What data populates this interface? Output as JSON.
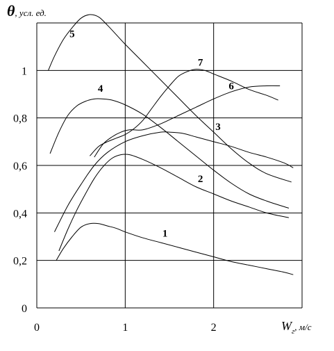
{
  "chart_data": {
    "type": "line",
    "title": "",
    "ylabel_symbol": "θ",
    "ylabel_unit": ", усл. ед.",
    "xlabel_symbol": "W",
    "xlabel_sub": "г",
    "xlabel_unit": ", м/с",
    "xlim": [
      0,
      3.0
    ],
    "ylim": [
      0,
      1.2
    ],
    "x_ticks": [
      0,
      1,
      2
    ],
    "x_tick_labels": [
      "0",
      "1",
      "2"
    ],
    "y_ticks": [
      0,
      0.2,
      0.4,
      0.6,
      0.8,
      1.0
    ],
    "y_tick_labels": [
      "0",
      "0,2",
      "0,4",
      "0,6",
      "0,8",
      "1"
    ],
    "grid": true,
    "series": [
      {
        "name": "1",
        "x": [
          0.22,
          0.3,
          0.4,
          0.5,
          0.6,
          0.7,
          0.8,
          0.9,
          1.0,
          1.2,
          1.4,
          1.6,
          1.8,
          2.0,
          2.2,
          2.4,
          2.6,
          2.8,
          2.9
        ],
        "y": [
          0.2,
          0.25,
          0.3,
          0.34,
          0.355,
          0.355,
          0.345,
          0.335,
          0.32,
          0.295,
          0.275,
          0.255,
          0.235,
          0.215,
          0.195,
          0.18,
          0.165,
          0.15,
          0.14
        ]
      },
      {
        "name": "2",
        "x": [
          0.25,
          0.35,
          0.45,
          0.55,
          0.65,
          0.75,
          0.85,
          0.95,
          1.05,
          1.2,
          1.4,
          1.6,
          1.8,
          2.0,
          2.2,
          2.4,
          2.6,
          2.85
        ],
        "y": [
          0.24,
          0.33,
          0.41,
          0.48,
          0.545,
          0.595,
          0.63,
          0.645,
          0.645,
          0.625,
          0.59,
          0.55,
          0.51,
          0.48,
          0.45,
          0.425,
          0.4,
          0.38
        ]
      },
      {
        "name": "3",
        "x": [
          0.2,
          0.35,
          0.5,
          0.65,
          0.8,
          1.0,
          1.2,
          1.4,
          1.5,
          1.65,
          1.8,
          2.0,
          2.2,
          2.4,
          2.6,
          2.8,
          2.9
        ],
        "y": [
          0.32,
          0.43,
          0.52,
          0.6,
          0.655,
          0.7,
          0.725,
          0.74,
          0.74,
          0.735,
          0.72,
          0.7,
          0.68,
          0.655,
          0.635,
          0.61,
          0.59
        ]
      },
      {
        "name": "4",
        "x": [
          0.15,
          0.25,
          0.35,
          0.45,
          0.55,
          0.65,
          0.75,
          0.85,
          1.0,
          1.2,
          1.4,
          1.6,
          1.8,
          2.0,
          2.2,
          2.4,
          2.6,
          2.85
        ],
        "y": [
          0.65,
          0.74,
          0.81,
          0.85,
          0.87,
          0.88,
          0.88,
          0.875,
          0.855,
          0.815,
          0.76,
          0.7,
          0.64,
          0.58,
          0.525,
          0.48,
          0.45,
          0.42
        ]
      },
      {
        "name": "5",
        "x": [
          0.13,
          0.2,
          0.3,
          0.4,
          0.5,
          0.6,
          0.7,
          0.8,
          0.9,
          1.0,
          1.2,
          1.4,
          1.6,
          1.8,
          2.0,
          2.2,
          2.4,
          2.6,
          2.88
        ],
        "y": [
          1.0,
          1.06,
          1.13,
          1.18,
          1.22,
          1.235,
          1.225,
          1.19,
          1.15,
          1.11,
          1.035,
          0.96,
          0.885,
          0.81,
          0.74,
          0.67,
          0.61,
          0.565,
          0.53
        ]
      },
      {
        "name": "6",
        "x": [
          0.65,
          0.75,
          0.85,
          0.95,
          1.05,
          1.2,
          1.4,
          1.6,
          1.8,
          2.0,
          2.2,
          2.4,
          2.6,
          2.75
        ],
        "y": [
          0.635,
          0.69,
          0.72,
          0.74,
          0.75,
          0.75,
          0.775,
          0.81,
          0.845,
          0.88,
          0.91,
          0.93,
          0.935,
          0.935
        ]
      },
      {
        "name": "7",
        "x": [
          0.6,
          0.7,
          0.8,
          0.9,
          1.0,
          1.1,
          1.2,
          1.3,
          1.4,
          1.5,
          1.6,
          1.7,
          1.8,
          1.9,
          2.0,
          2.2,
          2.4,
          2.6,
          2.73
        ],
        "y": [
          0.64,
          0.68,
          0.7,
          0.715,
          0.73,
          0.755,
          0.79,
          0.84,
          0.89,
          0.935,
          0.975,
          0.995,
          1.005,
          1.0,
          0.985,
          0.955,
          0.92,
          0.895,
          0.875
        ]
      }
    ],
    "labels": [
      {
        "text": "1",
        "x": 1.45,
        "y": 0.3
      },
      {
        "text": "2",
        "x": 1.85,
        "y": 0.53
      },
      {
        "text": "3",
        "x": 2.05,
        "y": 0.75
      },
      {
        "text": "4",
        "x": 0.72,
        "y": 0.91
      },
      {
        "text": "5",
        "x": 0.4,
        "y": 1.14
      },
      {
        "text": "6",
        "x": 2.2,
        "y": 0.92
      },
      {
        "text": "7",
        "x": 1.85,
        "y": 1.02
      }
    ]
  }
}
